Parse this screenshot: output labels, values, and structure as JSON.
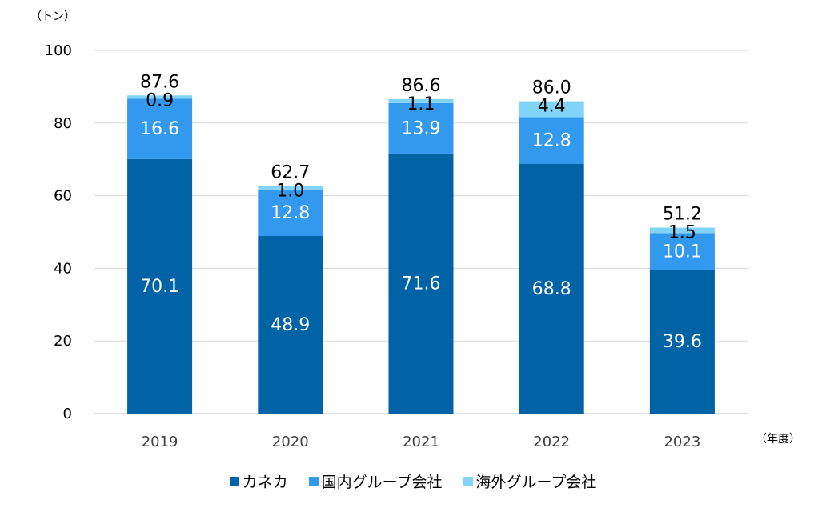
{
  "chart_data": {
    "type": "bar",
    "stacked": true,
    "categories": [
      "2019",
      "2020",
      "2021",
      "2022",
      "2023"
    ],
    "series": [
      {
        "name": "カネカ",
        "color": "#0063a6",
        "values": [
          70.1,
          48.9,
          71.6,
          68.8,
          39.6
        ]
      },
      {
        "name": "国内グループ会社",
        "color": "#3399ee",
        "values": [
          16.6,
          12.8,
          13.9,
          12.8,
          10.1
        ]
      },
      {
        "name": "海外グループ会社",
        "color": "#80d4f7",
        "values": [
          0.9,
          1.0,
          1.1,
          4.4,
          1.5
        ]
      }
    ],
    "totals": [
      87.6,
      62.7,
      86.6,
      86.0,
      51.2
    ],
    "total_labels": [
      "87.6",
      "62.7",
      "86.6",
      "86.0",
      "51.2"
    ],
    "value_labels": [
      [
        "70.1",
        "48.9",
        "71.6",
        "68.8",
        "39.6"
      ],
      [
        "16.6",
        "12.8",
        "13.9",
        "12.8",
        "10.1"
      ],
      [
        "0.9",
        "1.0",
        "1.1",
        "4.4",
        "1.5"
      ]
    ],
    "y_unit": "（トン）",
    "x_unit": "（年度）",
    "ylim": [
      0,
      100
    ],
    "yticks": [
      "0",
      "20",
      "40",
      "60",
      "80",
      "100"
    ],
    "grid": true,
    "legend_position": "bottom"
  }
}
